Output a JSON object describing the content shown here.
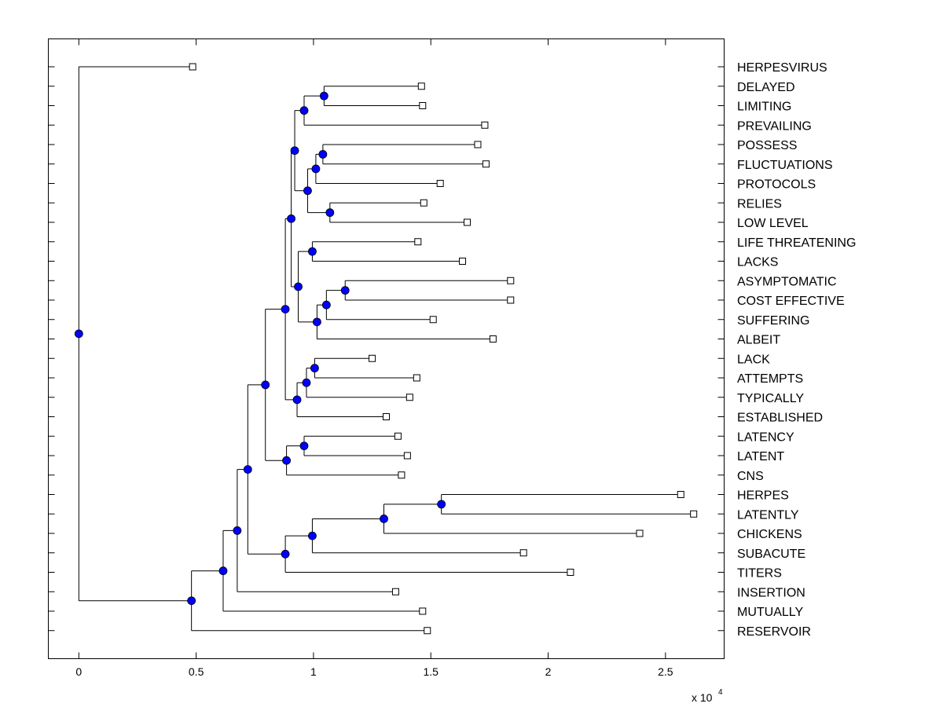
{
  "chart_data": {
    "type": "dendrogram",
    "x_axis": {
      "min": -1300,
      "max": 27500,
      "ticks": [
        0,
        5000,
        10000,
        15000,
        20000,
        25000
      ],
      "tick_labels": [
        "0",
        "0.5",
        "1",
        "1.5",
        "2",
        "2.5"
      ],
      "exponent_base": "x 10",
      "exponent_power": "4"
    },
    "leaves": [
      {
        "label": "HERPESVIRUS",
        "value": 4850
      },
      {
        "label": "DELAYED",
        "value": 14600
      },
      {
        "label": "LIMITING",
        "value": 14650
      },
      {
        "label": "PREVAILING",
        "value": 17300
      },
      {
        "label": "POSSESS",
        "value": 17000
      },
      {
        "label": "FLUCTUATIONS",
        "value": 17350
      },
      {
        "label": "PROTOCOLS",
        "value": 15400
      },
      {
        "label": "RELIES",
        "value": 14700
      },
      {
        "label": "LOW LEVEL",
        "value": 16550
      },
      {
        "label": "LIFE THREATENING",
        "value": 14450
      },
      {
        "label": "LACKS",
        "value": 16350
      },
      {
        "label": "ASYMPTOMATIC",
        "value": 18400
      },
      {
        "label": "COST EFFECTIVE",
        "value": 18400
      },
      {
        "label": "SUFFERING",
        "value": 15100
      },
      {
        "label": "ALBEIT",
        "value": 17650
      },
      {
        "label": "LACK",
        "value": 12500
      },
      {
        "label": "ATTEMPTS",
        "value": 14400
      },
      {
        "label": "TYPICALLY",
        "value": 14100
      },
      {
        "label": "ESTABLISHED",
        "value": 13100
      },
      {
        "label": "LATENCY",
        "value": 13600
      },
      {
        "label": "LATENT",
        "value": 14000
      },
      {
        "label": "CNS",
        "value": 13750
      },
      {
        "label": "HERPES",
        "value": 25650
      },
      {
        "label": "LATENTLY",
        "value": 26200
      },
      {
        "label": "CHICKENS",
        "value": 23900
      },
      {
        "label": "SUBACUTE",
        "value": 18950
      },
      {
        "label": "TITERS",
        "value": 20950
      },
      {
        "label": "INSERTION",
        "value": 13500
      },
      {
        "label": "MUTUALLY",
        "value": 14650
      },
      {
        "label": "RESERVOIR",
        "value": 14850
      }
    ],
    "merges": [
      {
        "id": "a",
        "value": 10450,
        "children": [
          "L1",
          "L2"
        ]
      },
      {
        "id": "b",
        "value": 9600,
        "children": [
          "a",
          "L3"
        ]
      },
      {
        "id": "c",
        "value": 10400,
        "children": [
          "L4",
          "L5"
        ]
      },
      {
        "id": "d",
        "value": 10100,
        "children": [
          "c",
          "L6"
        ]
      },
      {
        "id": "e",
        "value": 10700,
        "children": [
          "L7",
          "L8"
        ]
      },
      {
        "id": "f",
        "value": 9750,
        "children": [
          "d",
          "e"
        ]
      },
      {
        "id": "g",
        "value": 9200,
        "children": [
          "b",
          "f"
        ]
      },
      {
        "id": "h",
        "value": 9950,
        "children": [
          "L9",
          "L10"
        ]
      },
      {
        "id": "i",
        "value": 11350,
        "children": [
          "L11",
          "L12"
        ]
      },
      {
        "id": "j",
        "value": 10550,
        "children": [
          "i",
          "L13"
        ]
      },
      {
        "id": "k",
        "value": 10150,
        "children": [
          "j",
          "L14"
        ]
      },
      {
        "id": "l",
        "value": 9350,
        "children": [
          "h",
          "k"
        ]
      },
      {
        "id": "m",
        "value": 9050,
        "children": [
          "g",
          "l"
        ]
      },
      {
        "id": "n",
        "value": 10050,
        "children": [
          "L15",
          "L16"
        ]
      },
      {
        "id": "o",
        "value": 9700,
        "children": [
          "n",
          "L17"
        ]
      },
      {
        "id": "p",
        "value": 9300,
        "children": [
          "o",
          "L18"
        ]
      },
      {
        "id": "q",
        "value": 8800,
        "children": [
          "m",
          "p"
        ]
      },
      {
        "id": "r",
        "value": 9600,
        "children": [
          "L19",
          "L20"
        ]
      },
      {
        "id": "s",
        "value": 8850,
        "children": [
          "r",
          "L21"
        ]
      },
      {
        "id": "t",
        "value": 7950,
        "children": [
          "q",
          "s"
        ]
      },
      {
        "id": "u",
        "value": 15450,
        "children": [
          "L22",
          "L23"
        ]
      },
      {
        "id": "v",
        "value": 13000,
        "children": [
          "u",
          "L24"
        ]
      },
      {
        "id": "w",
        "value": 9950,
        "children": [
          "v",
          "L25"
        ]
      },
      {
        "id": "x",
        "value": 8800,
        "children": [
          "w",
          "L26"
        ]
      },
      {
        "id": "y",
        "value": 7200,
        "children": [
          "t",
          "x"
        ]
      },
      {
        "id": "z",
        "value": 6750,
        "children": [
          "y",
          "L27"
        ]
      },
      {
        "id": "aa",
        "value": 6150,
        "children": [
          "z",
          "L28"
        ]
      },
      {
        "id": "bb",
        "value": 4800,
        "children": [
          "aa",
          "L29"
        ]
      },
      {
        "id": "root",
        "value": 0,
        "children": [
          "L0",
          "bb"
        ]
      }
    ],
    "colors": {
      "line": "#000000",
      "internal_node": "#0000ff",
      "leaf_marker_fill": "#ffffff",
      "frame": "#000000"
    },
    "grid": false
  }
}
